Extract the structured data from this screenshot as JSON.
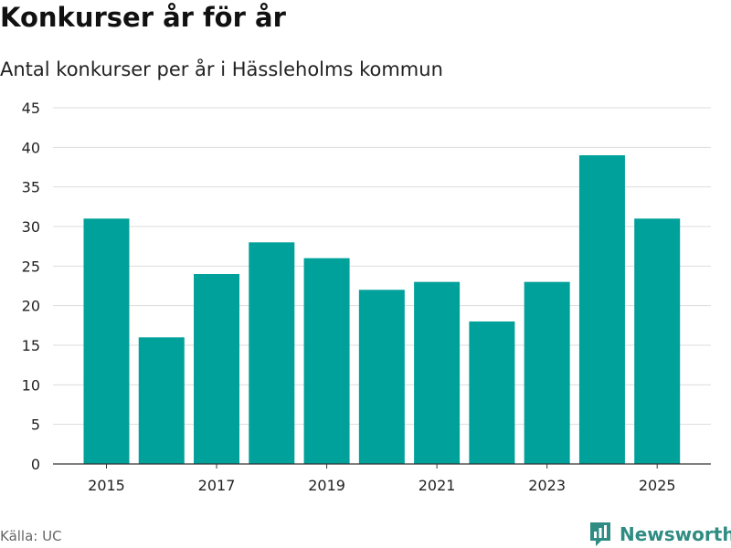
{
  "header": {
    "title": "Konkurser år för år",
    "subtitle": "Antal konkurser per år i Hässleholms kommun"
  },
  "footer": {
    "source": "Källa: UC",
    "brand": "Newsworthy",
    "brand_icon": "newsworthy-logo-icon"
  },
  "colors": {
    "bar": "#00a19a",
    "grid": "#dddddd",
    "axis": "#333333",
    "brand": "#2f8c82"
  },
  "chart_data": {
    "type": "bar",
    "title": "Konkurser år för år",
    "subtitle": "Antal konkurser per år i Hässleholms kommun",
    "xlabel": "",
    "ylabel": "",
    "categories": [
      2015,
      2016,
      2017,
      2018,
      2019,
      2020,
      2021,
      2022,
      2023,
      2024,
      2025
    ],
    "values": [
      31,
      16,
      24,
      28,
      26,
      22,
      23,
      18,
      23,
      39,
      31
    ],
    "x_tick_labels": [
      "2015",
      "2017",
      "2019",
      "2021",
      "2023",
      "2025"
    ],
    "y_ticks": [
      "0",
      "5",
      "10",
      "15",
      "20",
      "25",
      "30",
      "35",
      "40",
      "45"
    ],
    "ylim": [
      0,
      45
    ],
    "grid": true,
    "legend": "none"
  }
}
